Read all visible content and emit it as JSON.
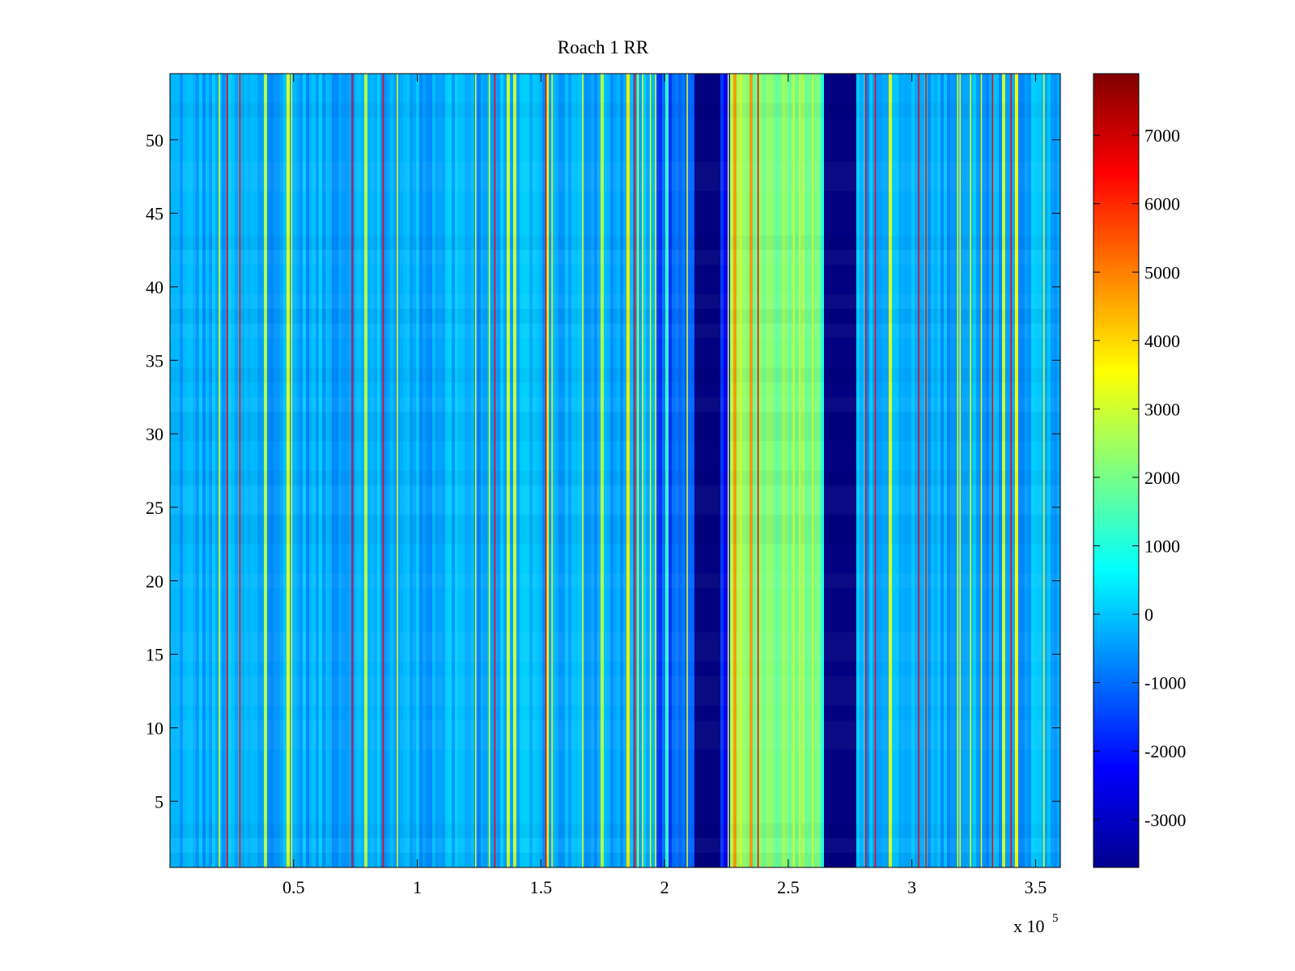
{
  "chart_data": {
    "type": "heatmap",
    "title": "Roach 1 RR",
    "xlabel": "",
    "ylabel": "",
    "x_range": [
      0,
      360000
    ],
    "y_range": [
      0.5,
      54.5
    ],
    "x_ticks": [
      50000,
      100000,
      150000,
      200000,
      250000,
      300000,
      350000
    ],
    "x_tick_labels": [
      "0.5",
      "1",
      "1.5",
      "2",
      "2.5",
      "3",
      "3.5"
    ],
    "x_multiplier_label": "x 10",
    "x_multiplier_exponent": "5",
    "y_ticks": [
      5,
      10,
      15,
      20,
      25,
      30,
      35,
      40,
      45,
      50
    ],
    "y_tick_labels": [
      "5",
      "10",
      "15",
      "20",
      "25",
      "30",
      "35",
      "40",
      "45",
      "50"
    ],
    "colormap": "jet",
    "color_range": [
      -3700,
      7900
    ],
    "colorbar_ticks": [
      -3000,
      -2000,
      -1000,
      0,
      1000,
      2000,
      3000,
      4000,
      5000,
      6000,
      7000
    ],
    "colorbar_tick_labels": [
      "-3000",
      "-2000",
      "-1000",
      "0",
      "1000",
      "2000",
      "3000",
      "4000",
      "5000",
      "6000",
      "7000"
    ],
    "background_level": -300,
    "bands": [
      {
        "x_start": 197000,
        "x_end": 212000,
        "value": -1300
      },
      {
        "x_start": 212000,
        "x_end": 223000,
        "value": -3700
      },
      {
        "x_start": 223000,
        "x_end": 227000,
        "value": -2000
      },
      {
        "x_start": 227000,
        "x_end": 263000,
        "value": 2200
      },
      {
        "x_start": 263000,
        "x_end": 264500,
        "value": -1500
      },
      {
        "x_start": 264500,
        "x_end": 277000,
        "value": -3700
      }
    ],
    "grid": false,
    "legend": "colorbar-right"
  }
}
